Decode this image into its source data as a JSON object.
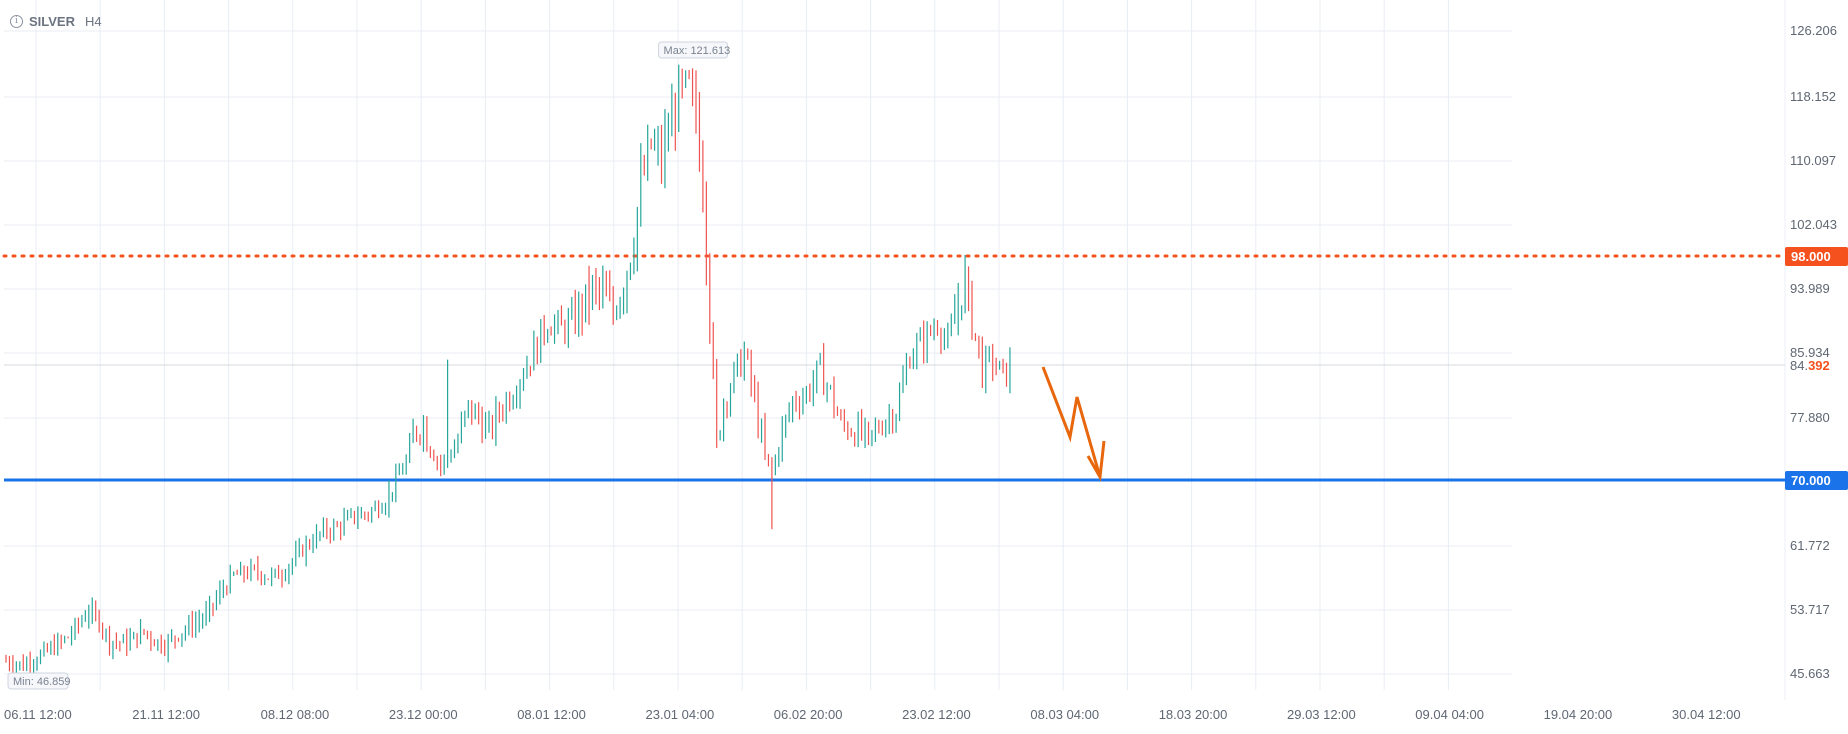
{
  "header": {
    "symbol": "SILVER",
    "timeframe": "H4",
    "info_icon": "info-icon"
  },
  "colors": {
    "up": "#26a69a",
    "down": "#ef5350",
    "grid": "#e8ecf4",
    "resistance": "#f4511e",
    "support": "#1a73e8",
    "arrow": "#e8660c"
  },
  "chart_data": {
    "type": "candlestick",
    "symbol": "SILVER",
    "timeframe": "H4",
    "y_ticks": [
      "126.206",
      "118.152",
      "110.097",
      "102.043",
      "93.989",
      "85.934",
      "77.880",
      "61.772",
      "53.717",
      "45.663"
    ],
    "x_ticks": [
      "06.11 12:00",
      "21.11 12:00",
      "08.12 08:00",
      "23.12 00:00",
      "08.01 12:00",
      "23.01 04:00",
      "06.02 20:00",
      "23.02 12:00",
      "08.03 04:00",
      "18.03 20:00",
      "29.03 12:00",
      "09.04 04:00",
      "19.04 20:00",
      "30.04 12:00"
    ],
    "ylim": [
      41.7,
      130.2
    ],
    "max_label": "Max: 121.613",
    "min_label": "Min: 46.859",
    "max_value": 121.613,
    "min_value": 46.859,
    "current_price": {
      "value": 84.392,
      "label_main": "84.",
      "label_accent": "392"
    },
    "levels": [
      {
        "name": "resistance",
        "value": 98.0,
        "label": "98.000",
        "style": "dotted",
        "color": "#f4511e"
      },
      {
        "name": "support",
        "value": 70.0,
        "label": "70.000",
        "style": "solid",
        "color": "#1a73e8"
      }
    ],
    "projection_arrow": {
      "direction": "down",
      "from": 84.4,
      "to": 70.0
    },
    "price_path": [
      [
        0,
        47.5
      ],
      [
        5,
        47.0
      ],
      [
        10,
        48.2
      ],
      [
        18,
        50.5
      ],
      [
        24,
        53.8
      ],
      [
        27,
        52.5
      ],
      [
        30,
        50.0
      ],
      [
        35,
        49.8
      ],
      [
        40,
        51.2
      ],
      [
        43,
        50.0
      ],
      [
        46,
        49.6
      ],
      [
        52,
        51.5
      ],
      [
        58,
        53.2
      ],
      [
        62,
        56.0
      ],
      [
        66,
        58.2
      ],
      [
        72,
        58.8
      ],
      [
        76,
        58.0
      ],
      [
        80,
        58.5
      ],
      [
        86,
        61.5
      ],
      [
        92,
        63.8
      ],
      [
        96,
        64.2
      ],
      [
        100,
        65.5
      ],
      [
        105,
        66.0
      ],
      [
        110,
        67.5
      ],
      [
        116,
        72.5
      ],
      [
        118,
        76.0
      ],
      [
        121,
        77.2
      ],
      [
        123,
        74.0
      ],
      [
        126,
        72.0
      ],
      [
        130,
        74.0
      ],
      [
        134,
        79.0
      ],
      [
        137,
        78.0
      ],
      [
        140,
        76.0
      ],
      [
        143,
        78.8
      ],
      [
        147,
        81.5
      ],
      [
        150,
        84.0
      ],
      [
        154,
        87.0
      ],
      [
        157,
        90.0
      ],
      [
        161,
        89.0
      ],
      [
        164,
        90.0
      ],
      [
        167,
        92.0
      ],
      [
        170,
        94.0
      ],
      [
        173,
        93.5
      ],
      [
        176,
        91.0
      ],
      [
        179,
        94.5
      ],
      [
        182,
        100.0
      ],
      [
        184,
        107.0
      ],
      [
        187,
        112.0
      ],
      [
        190,
        110.0
      ],
      [
        192,
        114.0
      ],
      [
        195,
        118.0
      ],
      [
        198,
        119.0
      ],
      [
        200,
        116.0
      ],
      [
        202,
        108.0
      ],
      [
        204,
        90.0
      ],
      [
        206,
        75.0
      ],
      [
        208,
        80.0
      ],
      [
        211,
        83.0
      ],
      [
        214,
        86.0
      ],
      [
        217,
        80.0
      ],
      [
        220,
        73.0
      ],
      [
        222,
        71.0
      ],
      [
        225,
        76.0
      ],
      [
        228,
        80.0
      ],
      [
        232,
        81.0
      ],
      [
        236,
        84.0
      ],
      [
        239,
        81.0
      ],
      [
        242,
        77.0
      ],
      [
        246,
        76.5
      ],
      [
        250,
        75.0
      ],
      [
        254,
        77.5
      ],
      [
        258,
        79.0
      ],
      [
        262,
        86.0
      ],
      [
        267,
        88.0
      ],
      [
        270,
        90.0
      ],
      [
        273,
        87.0
      ],
      [
        276,
        92.0
      ],
      [
        278,
        95.0
      ],
      [
        280,
        90.0
      ],
      [
        283,
        84.0
      ],
      [
        286,
        85.0
      ],
      [
        289,
        83.0
      ],
      [
        291,
        84.4
      ]
    ],
    "wick_extremes": [
      {
        "i": 128,
        "high": 85.2
      },
      {
        "i": 222,
        "low": 64.0
      },
      {
        "i": 199,
        "high": 121.613
      }
    ],
    "grid": true
  }
}
